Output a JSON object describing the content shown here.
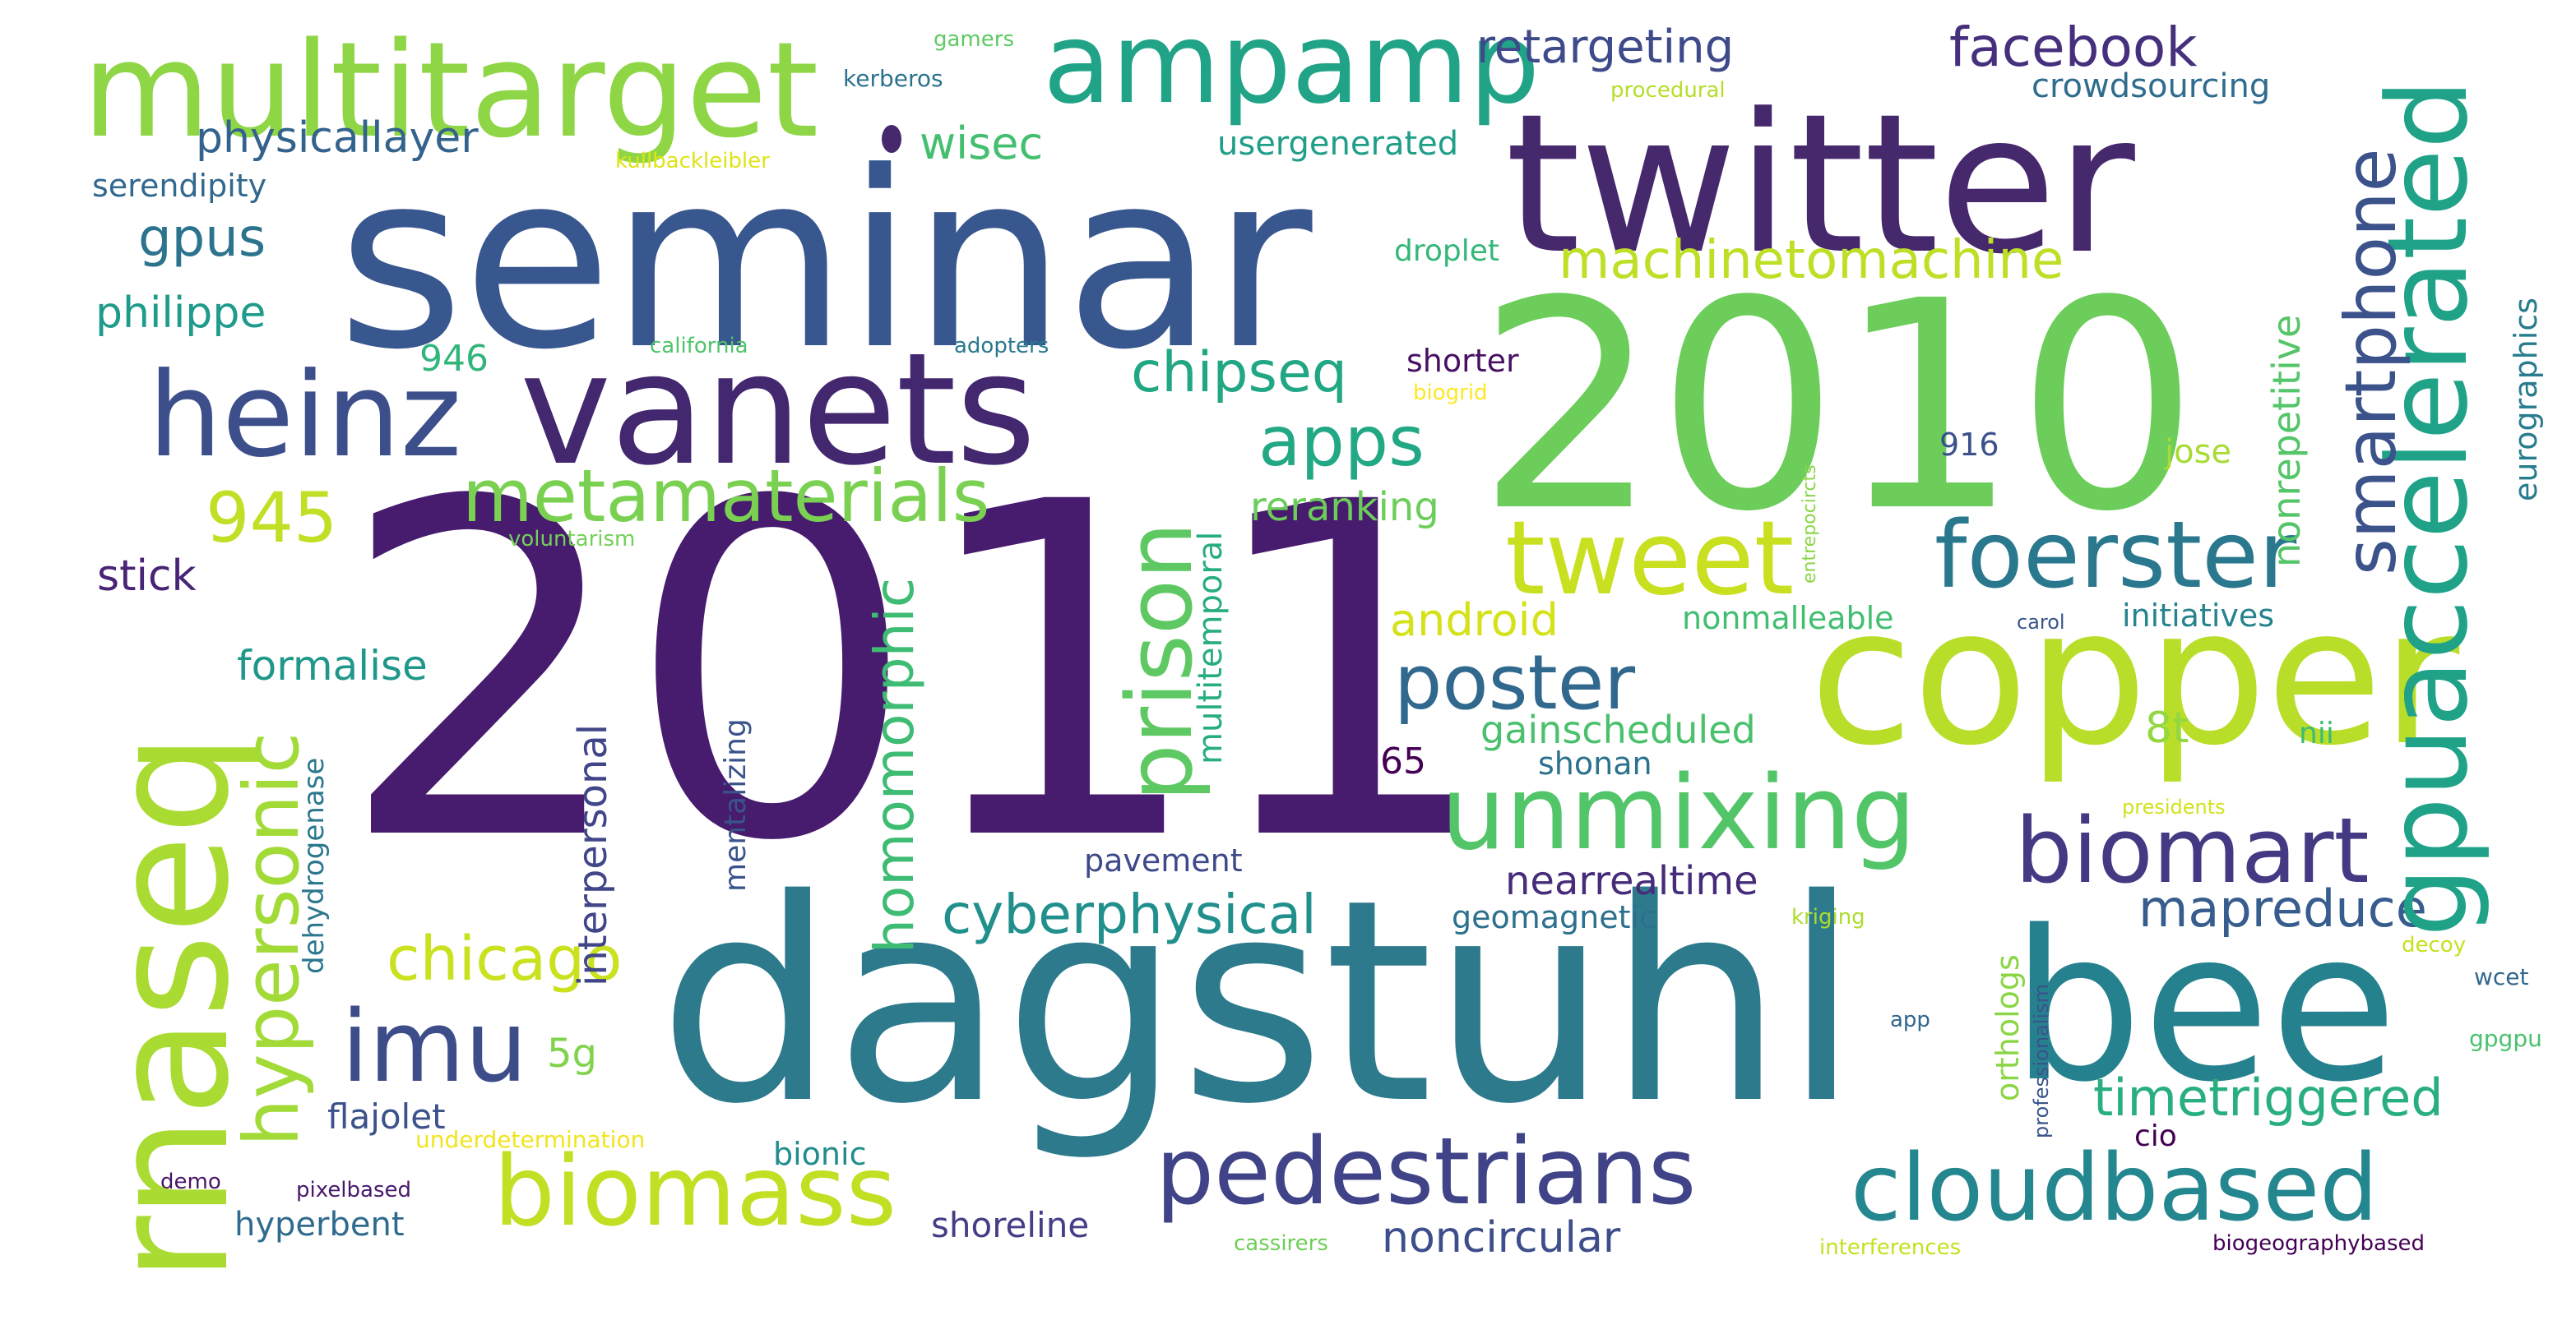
{
  "words": [
    {
      "text": "2011",
      "color": "#471b6e"
    },
    {
      "text": "dagstuhl",
      "color": "#2d7a8c"
    },
    {
      "text": "seminar",
      "color": "#39578f"
    },
    {
      "text": "2010",
      "color": "#6ccd5a"
    },
    {
      "text": "twitter",
      "color": "#46286c"
    },
    {
      "text": "copper",
      "color": "#b8de29"
    },
    {
      "text": "bee",
      "color": "#26818e"
    },
    {
      "text": "rnaseq",
      "color": "#a9db33"
    },
    {
      "text": "multitarget",
      "color": "#8ed645"
    },
    {
      "text": "vanets",
      "color": "#43276f"
    },
    {
      "text": "ampamp",
      "color": "#20a386"
    },
    {
      "text": "heinz",
      "color": "#3c4f8a"
    },
    {
      "text": "unmixing",
      "color": "#52c569"
    },
    {
      "text": "pedestrians",
      "color": "#404387"
    },
    {
      "text": "cloudbased",
      "color": "#24868e"
    },
    {
      "text": "biomass",
      "color": "#c2df23"
    },
    {
      "text": "biomart",
      "color": "#443a83"
    },
    {
      "text": "foerster",
      "color": "#2a788e"
    },
    {
      "text": "gpuaccelerated",
      "color": "#1fa287"
    },
    {
      "text": "metamaterials",
      "color": "#7ad151"
    },
    {
      "text": "imu",
      "color": "#3d4d8a"
    },
    {
      "text": "tweet",
      "color": "#c8e020"
    },
    {
      "text": "prison",
      "color": "#5ec962"
    },
    {
      "text": "poster",
      "color": "#31688e"
    },
    {
      "text": "hypersonic",
      "color": "#a2da37"
    },
    {
      "text": "smartphone",
      "color": "#3b528b"
    },
    {
      "text": "apps",
      "color": "#22a884"
    },
    {
      "text": "facebook",
      "color": "#46307e"
    },
    {
      "text": "chipseq",
      "color": "#22a785"
    },
    {
      "text": "chicago",
      "color": "#cae11f"
    },
    {
      "text": "945",
      "color": "#c0df25"
    },
    {
      "text": "cyberphysical",
      "color": "#21908d"
    },
    {
      "text": "machinetomachine",
      "color": "#bddf26"
    },
    {
      "text": "homomorphic",
      "color": "#3fbc73"
    },
    {
      "text": "mapreduce",
      "color": "#365d8d"
    },
    {
      "text": "timetriggered",
      "color": "#29af7f"
    },
    {
      "text": "retargeting",
      "color": "#3e4a89"
    },
    {
      "text": "android",
      "color": "#d5e21a"
    },
    {
      "text": "gpus",
      "color": "#2c738e"
    },
    {
      "text": "physicallayer",
      "color": "#33638d"
    },
    {
      "text": "philippe",
      "color": "#1e9b8a"
    },
    {
      "text": "wisec",
      "color": "#44bf70"
    },
    {
      "text": "formalise",
      "color": "#1f988b"
    },
    {
      "text": "stick",
      "color": "#482475"
    },
    {
      "text": "nonrepetitive",
      "color": "#54c568"
    },
    {
      "text": "interpersonal",
      "color": "#404688"
    },
    {
      "text": "multitemporal",
      "color": "#27ad81"
    },
    {
      "text": "gainscheduled",
      "color": "#4ac16d"
    },
    {
      "text": "noncircular",
      "color": "#3d4e8a"
    },
    {
      "text": "nearrealtime",
      "color": "#472c7a"
    },
    {
      "text": "crowdsourcing",
      "color": "#2f6c8e"
    },
    {
      "text": "usergenerated",
      "color": "#1f9f88"
    },
    {
      "text": "reranking",
      "color": "#6ccd5a"
    },
    {
      "text": "mentalizing",
      "color": "#3a538b"
    },
    {
      "text": "hyperbent",
      "color": "#2f6b8e"
    },
    {
      "text": "shoreline",
      "color": "#433e85"
    },
    {
      "text": "flajolet",
      "color": "#3b528b"
    },
    {
      "text": "5g",
      "color": "#81d34d"
    },
    {
      "text": "8t",
      "color": "#93d741"
    },
    {
      "text": "droplet",
      "color": "#35b779"
    },
    {
      "text": "shorter",
      "color": "#471063"
    },
    {
      "text": "946",
      "color": "#31b57b"
    },
    {
      "text": "65",
      "color": "#440154"
    },
    {
      "text": "serendipity",
      "color": "#31688e"
    },
    {
      "text": "eurographics",
      "color": "#287c8e"
    },
    {
      "text": "orthologs",
      "color": "#8bd646"
    },
    {
      "text": "nonmalleable",
      "color": "#42be71"
    },
    {
      "text": "initiatives",
      "color": "#25838e"
    },
    {
      "text": "geomagnetic",
      "color": "#2d708e"
    },
    {
      "text": "pavement",
      "color": "#3e4989"
    },
    {
      "text": "shonan",
      "color": "#2c718e"
    },
    {
      "text": "bionic",
      "color": "#228c8d"
    },
    {
      "text": "dehydrogenase",
      "color": "#2a778e"
    },
    {
      "text": "jose",
      "color": "#a8db34"
    },
    {
      "text": "916",
      "color": "#3b518b"
    },
    {
      "text": "cio",
      "color": "#440154"
    },
    {
      "text": "nii",
      "color": "#3dbc74"
    },
    {
      "text": "kerberos",
      "color": "#2c728e"
    },
    {
      "text": "gamers",
      "color": "#5ec962"
    },
    {
      "text": "procedural",
      "color": "#b5de2b"
    },
    {
      "text": "kullbackleibler",
      "color": "#dfe318"
    },
    {
      "text": "california",
      "color": "#4fc46a"
    },
    {
      "text": "adopters",
      "color": "#2a788e"
    },
    {
      "text": "biogrid",
      "color": "#fde725"
    },
    {
      "text": "voluntarism",
      "color": "#73d056"
    },
    {
      "text": "entrepocircts",
      "color": "#8bd646"
    },
    {
      "text": "carol",
      "color": "#39568c"
    },
    {
      "text": "presidents",
      "color": "#d2e21b"
    },
    {
      "text": "kriging",
      "color": "#addc30"
    },
    {
      "text": "decoy",
      "color": "#c8e020"
    },
    {
      "text": "professionalism",
      "color": "#3a538b"
    },
    {
      "text": "wcet",
      "color": "#31678e"
    },
    {
      "text": "app",
      "color": "#31678e"
    },
    {
      "text": "gpgpu",
      "color": "#4ac16d"
    },
    {
      "text": "underdetermination",
      "color": "#f1e51d"
    },
    {
      "text": "demo",
      "color": "#481467"
    },
    {
      "text": "pixelbased",
      "color": "#481a6c"
    },
    {
      "text": "cassirers",
      "color": "#6ece58"
    },
    {
      "text": "interferences",
      "color": "#c5e021"
    },
    {
      "text": "biogeographybased",
      "color": "#440154"
    }
  ]
}
